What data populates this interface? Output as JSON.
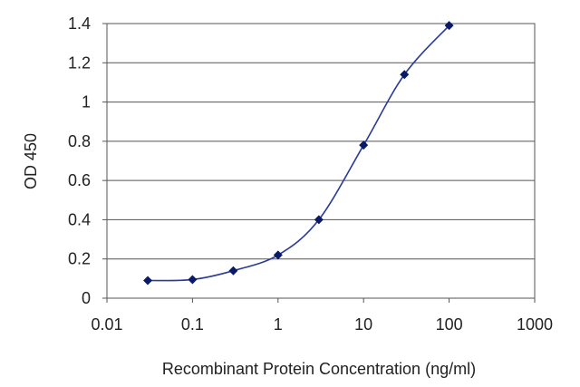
{
  "chart_data": {
    "type": "line",
    "title": "",
    "xlabel": "Recombinant Protein Concentration (ng/ml)",
    "ylabel": "OD 450",
    "x_scale": "log",
    "xlim": [
      0.01,
      1000
    ],
    "ylim": [
      0,
      1.4
    ],
    "x_ticks": [
      "0.01",
      "0.1",
      "1",
      "10",
      "100",
      "1000"
    ],
    "y_ticks": [
      "0",
      "0.2",
      "0.4",
      "0.6",
      "0.8",
      "1",
      "1.2",
      "1.4"
    ],
    "grid": "horizontal",
    "legend": "none",
    "series": [
      {
        "color": "#2a3a9a",
        "marker_color": "#0a1a6a",
        "x": [
          0.03,
          0.1,
          0.3,
          1,
          3,
          10,
          30,
          100
        ],
        "y": [
          0.09,
          0.095,
          0.14,
          0.22,
          0.4,
          0.78,
          1.14,
          1.39
        ]
      }
    ]
  }
}
